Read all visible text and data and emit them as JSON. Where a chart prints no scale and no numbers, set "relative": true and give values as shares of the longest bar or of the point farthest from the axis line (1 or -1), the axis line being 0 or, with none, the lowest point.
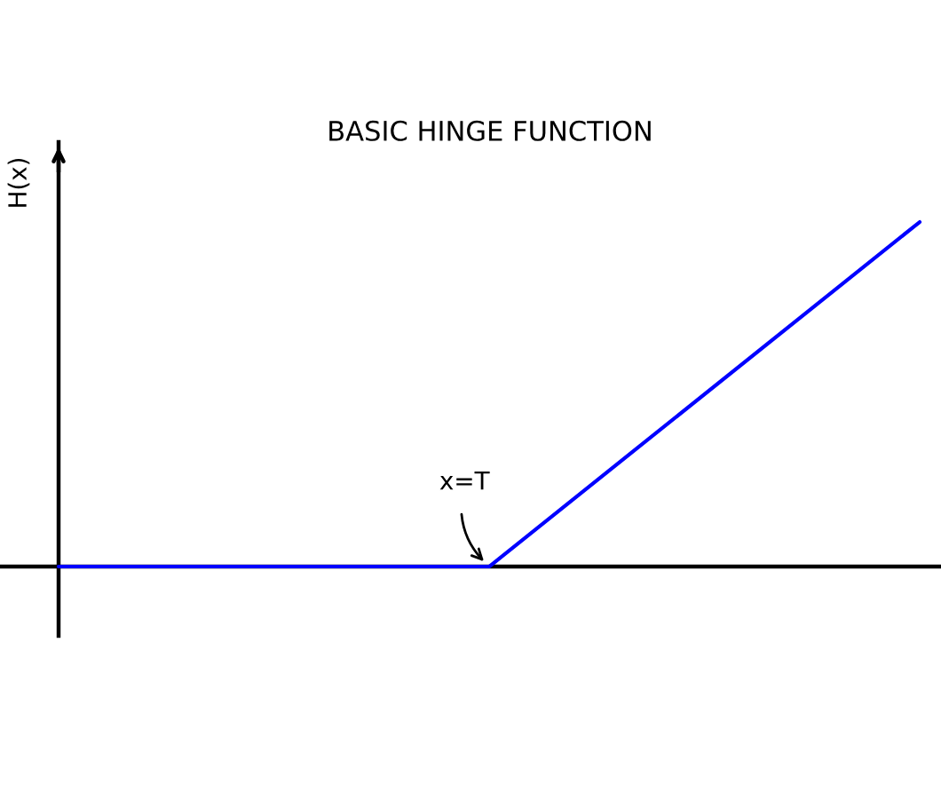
{
  "chart_data": {
    "type": "line",
    "title": "BASIC HINGE FUNCTION",
    "ylabel": "H(x)",
    "categories": [
      null,
      null,
      null
    ],
    "relative": true,
    "series": [
      {
        "color": "#0000ff",
        "values": [
          0,
          0,
          1
        ]
      }
    ],
    "annotations": [
      "x=T"
    ]
  }
}
